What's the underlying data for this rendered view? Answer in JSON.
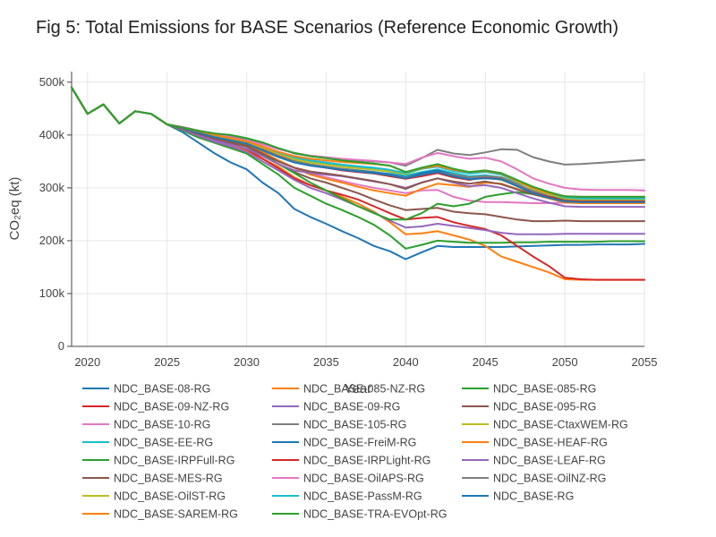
{
  "chart_data": {
    "type": "line",
    "title": "Fig 5: Total Emissions for BASE Scenarios (Reference Economic Growth)",
    "xlabel": "Year",
    "ylabel": "CO₂eq (kt)",
    "xlim": [
      2019,
      2055
    ],
    "ylim": [
      0,
      520000
    ],
    "x_ticks": [
      2020,
      2025,
      2030,
      2035,
      2040,
      2045,
      2050,
      2055
    ],
    "y_ticks": [
      {
        "value": 0,
        "label": "0"
      },
      {
        "value": 100000,
        "label": "100k"
      },
      {
        "value": 200000,
        "label": "200k"
      },
      {
        "value": 300000,
        "label": "300k"
      },
      {
        "value": 400000,
        "label": "400k"
      },
      {
        "value": 500000,
        "label": "500k"
      }
    ],
    "grid": true,
    "legend_position": "bottom",
    "x": [
      2019,
      2020,
      2021,
      2022,
      2023,
      2024,
      2025,
      2026,
      2027,
      2028,
      2029,
      2030,
      2031,
      2032,
      2033,
      2034,
      2035,
      2036,
      2037,
      2038,
      2039,
      2040,
      2041,
      2042,
      2043,
      2044,
      2045,
      2046,
      2047,
      2048,
      2049,
      2050,
      2051,
      2052,
      2053,
      2054,
      2055
    ],
    "series": [
      {
        "name": "NDC_BASE-08-RG",
        "color": "#1f77b4",
        "values": [
          490000,
          440000,
          458000,
          422000,
          445000,
          440000,
          420000,
          405000,
          385000,
          365000,
          348000,
          335000,
          310000,
          290000,
          260000,
          245000,
          232000,
          218000,
          205000,
          190000,
          180000,
          165000,
          178000,
          190000,
          188000,
          188000,
          188000,
          188000,
          189000,
          190000,
          191000,
          192000,
          192000,
          193000,
          193000,
          193000,
          194000
        ]
      },
      {
        "name": "NDC_BASE-085-NZ-RG",
        "color": "#ff7f0e",
        "values": [
          490000,
          440000,
          458000,
          422000,
          445000,
          440000,
          420000,
          412000,
          400000,
          390000,
          380000,
          370000,
          355000,
          340000,
          320000,
          305000,
          295000,
          283000,
          270000,
          255000,
          235000,
          212000,
          214000,
          218000,
          210000,
          202000,
          190000,
          170000,
          160000,
          150000,
          140000,
          127000,
          126000,
          126000,
          126000,
          126000,
          126000
        ]
      },
      {
        "name": "NDC_BASE-085-RG",
        "color": "#2ca02c",
        "values": [
          490000,
          440000,
          458000,
          422000,
          445000,
          440000,
          420000,
          408000,
          395000,
          385000,
          375000,
          365000,
          345000,
          325000,
          300000,
          285000,
          270000,
          258000,
          245000,
          230000,
          210000,
          185000,
          192000,
          200000,
          198000,
          196000,
          196000,
          196000,
          197000,
          197000,
          198000,
          198000,
          198000,
          198000,
          199000,
          199000,
          199000
        ]
      },
      {
        "name": "NDC_BASE-09-NZ-RG",
        "color": "#d62728",
        "values": [
          490000,
          440000,
          458000,
          422000,
          445000,
          440000,
          420000,
          412000,
          402000,
          393000,
          383000,
          373000,
          355000,
          337000,
          318000,
          305000,
          295000,
          287000,
          278000,
          265000,
          252000,
          240000,
          243000,
          245000,
          235000,
          228000,
          222000,
          210000,
          190000,
          170000,
          152000,
          130000,
          127000,
          126000,
          126000,
          126000,
          126000
        ]
      },
      {
        "name": "NDC_BASE-09-RG",
        "color": "#9467bd",
        "values": [
          490000,
          440000,
          458000,
          422000,
          445000,
          440000,
          420000,
          410000,
          398000,
          387000,
          378000,
          368000,
          350000,
          333000,
          315000,
          300000,
          290000,
          278000,
          265000,
          253000,
          238000,
          225000,
          227000,
          232000,
          228000,
          224000,
          220000,
          215000,
          212000,
          212000,
          212000,
          213000,
          213000,
          213000,
          213000,
          213000,
          213000
        ]
      },
      {
        "name": "NDC_BASE-095-RG",
        "color": "#8c564b",
        "values": [
          490000,
          440000,
          458000,
          422000,
          445000,
          440000,
          420000,
          412000,
          402000,
          393000,
          385000,
          378000,
          362000,
          345000,
          330000,
          318000,
          310000,
          300000,
          290000,
          278000,
          267000,
          258000,
          260000,
          262000,
          255000,
          252000,
          250000,
          245000,
          240000,
          237000,
          237000,
          238000,
          237000,
          237000,
          237000,
          237000,
          237000
        ]
      },
      {
        "name": "NDC_BASE-10-RG",
        "color": "#e377c2",
        "values": [
          490000,
          440000,
          458000,
          422000,
          445000,
          440000,
          420000,
          412000,
          403000,
          395000,
          388000,
          380000,
          365000,
          350000,
          338000,
          327000,
          320000,
          313000,
          306000,
          300000,
          295000,
          290000,
          295000,
          296000,
          283000,
          276000,
          273000,
          273000,
          272000,
          271000,
          271000,
          272000,
          272000,
          272000,
          272000,
          272000,
          272000
        ]
      },
      {
        "name": "NDC_BASE-105-RG",
        "color": "#7f7f7f",
        "values": [
          490000,
          440000,
          458000,
          422000,
          445000,
          440000,
          420000,
          415000,
          408000,
          402000,
          398000,
          392000,
          385000,
          375000,
          365000,
          360000,
          357000,
          354000,
          352000,
          350000,
          348000,
          342000,
          356000,
          372000,
          365000,
          362000,
          367000,
          373000,
          372000,
          358000,
          350000,
          344000,
          345000,
          347000,
          349000,
          351000,
          353000
        ]
      },
      {
        "name": "NDC_BASE-CtaxWEM-RG",
        "color": "#bcbd22",
        "values": [
          490000,
          440000,
          458000,
          422000,
          445000,
          440000,
          420000,
          414000,
          406000,
          398000,
          392000,
          386000,
          375000,
          362000,
          352000,
          345000,
          340000,
          336000,
          333000,
          330000,
          325000,
          318000,
          326000,
          330000,
          322000,
          318000,
          320000,
          315000,
          305000,
          295000,
          285000,
          278000,
          276000,
          276000,
          277000,
          277000,
          277000
        ]
      },
      {
        "name": "NDC_BASE-EE-RG",
        "color": "#17becf",
        "values": [
          490000,
          440000,
          458000,
          422000,
          445000,
          440000,
          420000,
          414000,
          406000,
          399000,
          393000,
          387000,
          377000,
          365000,
          355000,
          349000,
          345000,
          341000,
          338000,
          335000,
          330000,
          323000,
          330000,
          335000,
          328000,
          322000,
          324000,
          320000,
          310000,
          300000,
          288000,
          280000,
          279000,
          279000,
          279000,
          279000,
          279000
        ]
      },
      {
        "name": "NDC_BASE-FreiM-RG",
        "color": "#1f77b4",
        "values": [
          490000,
          440000,
          458000,
          422000,
          445000,
          440000,
          420000,
          413000,
          405000,
          398000,
          392000,
          385000,
          372000,
          360000,
          350000,
          344000,
          340000,
          336000,
          333000,
          330000,
          326000,
          320000,
          328000,
          333000,
          325000,
          318000,
          320000,
          318000,
          305000,
          292000,
          283000,
          276000,
          274000,
          274000,
          274000,
          274000,
          274000
        ]
      },
      {
        "name": "NDC_BASE-HEAF-RG",
        "color": "#ff7f0e",
        "values": [
          490000,
          440000,
          458000,
          422000,
          445000,
          440000,
          420000,
          413000,
          405000,
          397000,
          390000,
          383000,
          368000,
          352000,
          338000,
          325000,
          317000,
          310000,
          302000,
          295000,
          290000,
          285000,
          298000,
          308000,
          305000,
          302000,
          310000,
          308000,
          298000,
          288000,
          280000,
          272000,
          271000,
          271000,
          271000,
          271000,
          271000
        ]
      },
      {
        "name": "NDC_BASE-IRPFull-RG",
        "color": "#2ca02c",
        "values": [
          490000,
          440000,
          458000,
          422000,
          445000,
          440000,
          420000,
          413000,
          405000,
          396000,
          388000,
          380000,
          365000,
          345000,
          328000,
          310000,
          295000,
          280000,
          265000,
          252000,
          240000,
          240000,
          252000,
          270000,
          265000,
          270000,
          283000,
          288000,
          292000,
          288000,
          283000,
          280000,
          280000,
          280000,
          280000,
          280000,
          280000
        ]
      },
      {
        "name": "NDC_BASE-IRPLight-RG",
        "color": "#d62728",
        "values": [
          490000,
          440000,
          458000,
          422000,
          445000,
          440000,
          420000,
          414000,
          406000,
          398000,
          392000,
          386000,
          374000,
          362000,
          350000,
          343000,
          338000,
          333000,
          330000,
          327000,
          322000,
          317000,
          322000,
          328000,
          320000,
          315000,
          320000,
          317000,
          304000,
          292000,
          283000,
          276000,
          275000,
          275000,
          275000,
          275000,
          275000
        ]
      },
      {
        "name": "NDC_BASE-LEAF-RG",
        "color": "#9467bd",
        "values": [
          490000,
          440000,
          458000,
          422000,
          445000,
          440000,
          420000,
          412000,
          400000,
          390000,
          382000,
          374000,
          360000,
          345000,
          333000,
          328000,
          325000,
          322000,
          317000,
          312000,
          307000,
          300000,
          310000,
          318000,
          310000,
          303000,
          305000,
          300000,
          290000,
          280000,
          272000,
          265000,
          264000,
          264000,
          264000,
          264000,
          264000
        ]
      },
      {
        "name": "NDC_BASE-MES-RG",
        "color": "#8c564b",
        "values": [
          490000,
          440000,
          458000,
          422000,
          445000,
          440000,
          420000,
          412000,
          402000,
          393000,
          386000,
          380000,
          365000,
          350000,
          338000,
          331000,
          327000,
          323000,
          318000,
          313000,
          307000,
          298000,
          310000,
          318000,
          312000,
          308000,
          312000,
          307000,
          297000,
          288000,
          281000,
          275000,
          273000,
          273000,
          273000,
          273000,
          273000
        ]
      },
      {
        "name": "NDC_BASE-OilAPS-RG",
        "color": "#e377c2",
        "values": [
          490000,
          440000,
          458000,
          422000,
          445000,
          440000,
          420000,
          415000,
          408000,
          402000,
          396000,
          390000,
          382000,
          373000,
          366000,
          361000,
          358000,
          355000,
          353000,
          351000,
          348000,
          345000,
          357000,
          366000,
          360000,
          355000,
          357000,
          350000,
          335000,
          318000,
          308000,
          300000,
          297000,
          296000,
          296000,
          296000,
          295000
        ]
      },
      {
        "name": "NDC_BASE-OilNZ-RG",
        "color": "#7f7f7f",
        "values": [
          490000,
          440000,
          458000,
          422000,
          445000,
          440000,
          420000,
          413000,
          404000,
          396000,
          390000,
          384000,
          372000,
          360000,
          350000,
          344000,
          340000,
          336000,
          332000,
          328000,
          324000,
          319000,
          325000,
          330000,
          325000,
          320000,
          322000,
          320000,
          307000,
          294000,
          286000,
          283000,
          282000,
          282000,
          282000,
          282000,
          282000
        ]
      },
      {
        "name": "NDC_BASE-OilST-RG",
        "color": "#bcbd22",
        "values": [
          490000,
          440000,
          458000,
          422000,
          445000,
          440000,
          420000,
          414000,
          406000,
          399000,
          393000,
          387000,
          376000,
          364000,
          354000,
          348000,
          344000,
          340000,
          337000,
          334000,
          331000,
          326000,
          336000,
          342000,
          333000,
          328000,
          332000,
          325000,
          312000,
          298000,
          288000,
          280000,
          278000,
          278000,
          278000,
          278000,
          278000
        ]
      },
      {
        "name": "NDC_BASE-PassM-RG",
        "color": "#17becf",
        "values": [
          490000,
          440000,
          458000,
          422000,
          445000,
          440000,
          420000,
          414000,
          407000,
          400000,
          394000,
          388000,
          378000,
          367000,
          358000,
          352000,
          348000,
          344000,
          341000,
          338000,
          334000,
          328000,
          336000,
          340000,
          332000,
          327000,
          330000,
          325000,
          313000,
          300000,
          290000,
          282000,
          280000,
          280000,
          280000,
          280000,
          280000
        ]
      },
      {
        "name": "NDC_BASE-RG",
        "color": "#1f77b4",
        "values": [
          490000,
          440000,
          458000,
          422000,
          445000,
          440000,
          420000,
          413000,
          404000,
          396000,
          390000,
          384000,
          371000,
          358000,
          348000,
          342000,
          338000,
          334000,
          331000,
          328000,
          324000,
          318000,
          325000,
          330000,
          322000,
          316000,
          318000,
          316000,
          303000,
          290000,
          281000,
          274000,
          273000,
          273000,
          273000,
          273000,
          273000
        ]
      },
      {
        "name": "NDC_BASE-SAREM-RG",
        "color": "#ff7f0e",
        "values": [
          490000,
          440000,
          458000,
          422000,
          445000,
          440000,
          420000,
          414000,
          407000,
          400000,
          394000,
          388000,
          378000,
          368000,
          360000,
          355000,
          352000,
          349000,
          347000,
          345000,
          342000,
          330000,
          337000,
          342000,
          334000,
          330000,
          332000,
          327000,
          313000,
          300000,
          290000,
          284000,
          283000,
          283000,
          283000,
          283000,
          283000
        ]
      },
      {
        "name": "NDC_BASE-TRA-EVOpt-RG",
        "color": "#2ca02c",
        "values": [
          490000,
          440000,
          458000,
          422000,
          445000,
          440000,
          420000,
          414000,
          408000,
          403000,
          400000,
          394000,
          386000,
          375000,
          366000,
          360000,
          356000,
          352000,
          349000,
          346000,
          342000,
          330000,
          338000,
          345000,
          336000,
          330000,
          333000,
          328000,
          315000,
          302000,
          292000,
          284000,
          283000,
          283000,
          283000,
          283000,
          283000
        ]
      }
    ]
  }
}
